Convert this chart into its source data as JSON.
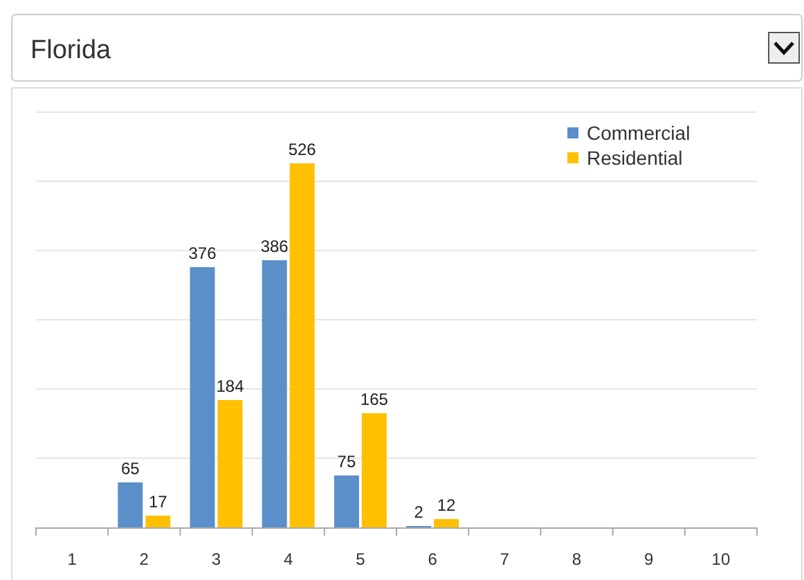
{
  "chart_data": {
    "type": "bar",
    "title": "Florida",
    "categories": [
      "1",
      "2",
      "3",
      "4",
      "5",
      "6",
      "7",
      "8",
      "9",
      "10"
    ],
    "series": [
      {
        "name": "Commercial",
        "color": "#5b8fc9",
        "values": [
          null,
          65,
          376,
          386,
          75,
          2,
          null,
          null,
          null,
          null
        ]
      },
      {
        "name": "Residential",
        "color": "#ffc000",
        "values": [
          null,
          17,
          184,
          526,
          165,
          12,
          null,
          null,
          null,
          null
        ]
      }
    ],
    "ylim": [
      0,
      600
    ],
    "yticks": [
      {
        "value": 0,
        "label": null
      },
      {
        "value": 100,
        "label": null
      },
      {
        "value": 200,
        "label": null
      },
      {
        "value": 300,
        "label": null
      },
      {
        "value": 400,
        "label": null
      },
      {
        "value": 500,
        "label": null
      },
      {
        "value": 600,
        "label": null
      }
    ],
    "tick_labels": "x",
    "grid": "y",
    "legend": "top right",
    "data_labels": true
  }
}
